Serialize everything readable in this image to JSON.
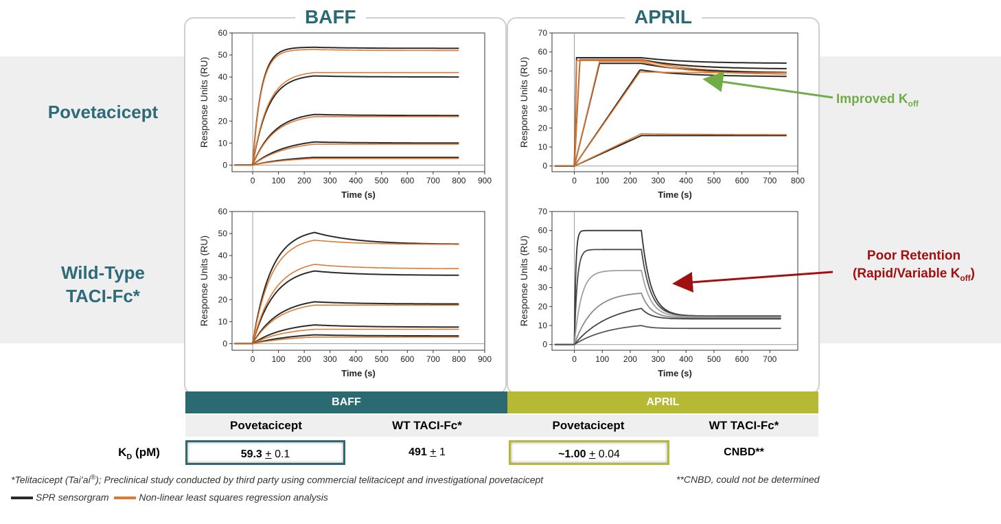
{
  "titles": {
    "baff": "BAFF",
    "april": "APRIL"
  },
  "rows": {
    "row1": "Povetacicept",
    "row2_line1": "Wild-Type",
    "row2_line2": "TACI-Fc*"
  },
  "annotations": {
    "improved": "Improved K",
    "improved_sub": "off",
    "poor_line1": "Poor Retention",
    "poor_line2": "(Rapid/Variable K",
    "poor_sub": "off",
    "poor_close": ")"
  },
  "colors": {
    "teal": "#2c6a72",
    "olive": "#b6b934",
    "green_arrow": "#70ad47",
    "red_arrow": "#a01010",
    "sensor": "#2a2a2a",
    "fit": "#e07a30"
  },
  "axis_labels": {
    "y": "Response  Units (RU)",
    "x": "Time (s)"
  },
  "table": {
    "header_baff": "BAFF",
    "header_april": "APRIL",
    "col1": "Povetacicept",
    "col2": "WT TACI-Fc*",
    "col3": "Povetacicept",
    "col4": "WT  TACI-Fc*",
    "kd_label": "K",
    "kd_sub": "D",
    "kd_unit": " (pM)",
    "v1_main": "59.3",
    "v1_pm": "+",
    "v1_err": " 0.1",
    "v2_main": "491",
    "v2_pm": "+",
    "v2_err": " 1",
    "v3_main": "~1.00",
    "v3_pm": "+",
    "v3_err": " 0.04",
    "v4": "CNBD**"
  },
  "footnotes": {
    "left_prefix": "*Telitacicept (Tai’ai",
    "left_reg": "®",
    "left_suffix": "); Preclinical study conducted by third party using commercial telitacicept and investigational povetacicept",
    "right": "**CNBD, could not be determined",
    "legend_sensor": "SPR sensorgram",
    "legend_fit": "Non-linear least squares regression analysis"
  },
  "chart_data": [
    {
      "id": "baff-pov",
      "type": "line",
      "title": "BAFF – Povetacicept",
      "xlabel": "Time (s)",
      "ylabel": "Response  Units (RU)",
      "xlim": [
        -80,
        900
      ],
      "ylim": [
        -3,
        60
      ],
      "xticks": [
        0,
        100,
        200,
        300,
        400,
        500,
        600,
        700,
        800,
        900
      ],
      "yticks": [
        0,
        10,
        20,
        30,
        40,
        50,
        60
      ],
      "inject_end": 240,
      "end": 800,
      "sensor_kind": "exp",
      "series": [
        {
          "name": "conc-1",
          "peak": 53.5,
          "final": 53,
          "fit_peak": 52.5,
          "fit_final": 52,
          "k": 0.03
        },
        {
          "name": "conc-2",
          "peak": 40.5,
          "final": 40,
          "fit_peak": 42,
          "fit_final": 42,
          "k": 0.017
        },
        {
          "name": "conc-3",
          "peak": 23,
          "final": 22.5,
          "fit_peak": 22,
          "fit_final": 22,
          "k": 0.012
        },
        {
          "name": "conc-4",
          "peak": 10.5,
          "final": 10,
          "fit_peak": 9.5,
          "fit_final": 9.5,
          "k": 0.008
        },
        {
          "name": "conc-5",
          "peak": 3.5,
          "final": 3.5,
          "fit_peak": 3,
          "fit_final": 3,
          "k": 0.006
        }
      ]
    },
    {
      "id": "april-pov",
      "type": "line",
      "title": "APRIL – Povetacicept",
      "xlabel": "Time (s)",
      "ylabel": "Response  Units (RU)",
      "xlim": [
        -80,
        800
      ],
      "ylim": [
        -3,
        70
      ],
      "xticks": [
        0,
        100,
        200,
        300,
        400,
        500,
        600,
        700,
        800
      ],
      "yticks": [
        0,
        10,
        20,
        30,
        40,
        50,
        60,
        70
      ],
      "inject_end": 240,
      "end": 760,
      "sensor_kind": "linear",
      "series": [
        {
          "name": "conc-1",
          "peak": 57,
          "final": 54,
          "fit_peak": 55.5,
          "fit_final": 51,
          "ramp": 8
        },
        {
          "name": "conc-2",
          "peak": 56,
          "final": 51,
          "fit_peak": 56,
          "fit_final": 49,
          "ramp": 20
        },
        {
          "name": "conc-3",
          "peak": 54,
          "final": 49,
          "fit_peak": 55,
          "fit_final": 48,
          "ramp": 90
        },
        {
          "name": "conc-4",
          "peak": 50.5,
          "final": 47,
          "fit_peak": 49.5,
          "fit_final": 49,
          "ramp": 235
        },
        {
          "name": "conc-5",
          "peak": 16,
          "final": 16,
          "fit_peak": 17,
          "fit_final": 16.5,
          "ramp": 240
        }
      ]
    },
    {
      "id": "baff-wt",
      "type": "line",
      "title": "BAFF – WT TACI-Fc",
      "xlabel": "Time (s)",
      "ylabel": "Response  Units (RU)",
      "xlim": [
        -80,
        900
      ],
      "ylim": [
        -3,
        60
      ],
      "xticks": [
        0,
        100,
        200,
        300,
        400,
        500,
        600,
        700,
        800,
        900
      ],
      "yticks": [
        0,
        10,
        20,
        30,
        40,
        50,
        60
      ],
      "inject_end": 240,
      "end": 800,
      "sensor_kind": "exp",
      "series": [
        {
          "name": "conc-1",
          "peak": 50.5,
          "final": 45,
          "fit_peak": 47,
          "fit_final": 45,
          "k": 0.014
        },
        {
          "name": "conc-2",
          "peak": 33,
          "final": 31,
          "fit_peak": 36,
          "fit_final": 34,
          "k": 0.012
        },
        {
          "name": "conc-3",
          "peak": 19,
          "final": 18,
          "fit_peak": 17.5,
          "fit_final": 17.5,
          "k": 0.01
        },
        {
          "name": "conc-4",
          "peak": 8.5,
          "final": 7.5,
          "fit_peak": 6.5,
          "fit_final": 6.5,
          "k": 0.008
        },
        {
          "name": "conc-5",
          "peak": 4,
          "final": 3.5,
          "fit_peak": 3,
          "fit_final": 3,
          "k": 0.006
        }
      ]
    },
    {
      "id": "april-wt",
      "type": "line",
      "title": "APRIL – WT TACI-Fc",
      "xlabel": "Time (s)",
      "ylabel": "Response  Units (RU)",
      "xlim": [
        -80,
        800
      ],
      "ylim": [
        -3,
        70
      ],
      "xticks": [
        0,
        100,
        200,
        300,
        400,
        500,
        600,
        700
      ],
      "yticks": [
        0,
        10,
        20,
        30,
        40,
        50,
        60,
        70
      ],
      "inject_end": 240,
      "end": 740,
      "sensor_kind": "gray",
      "series": [
        {
          "name": "conc-1",
          "peak": 60,
          "final": 15,
          "k": 0.2,
          "color": "#333333"
        },
        {
          "name": "conc-2",
          "peak": 50,
          "final": 15,
          "k": 0.1,
          "color": "#4a4a4a"
        },
        {
          "name": "conc-3",
          "peak": 39,
          "final": 14.5,
          "k": 0.04,
          "color": "#a0a0a0"
        },
        {
          "name": "conc-4",
          "peak": 27,
          "final": 14,
          "k": 0.015,
          "color": "#8a8a8a"
        },
        {
          "name": "conc-5",
          "peak": 19,
          "final": 13.5,
          "k": 0.008,
          "color": "#444444"
        },
        {
          "name": "conc-6",
          "peak": 10,
          "final": 8.5,
          "k": 0.008,
          "color": "#555555"
        }
      ]
    }
  ]
}
